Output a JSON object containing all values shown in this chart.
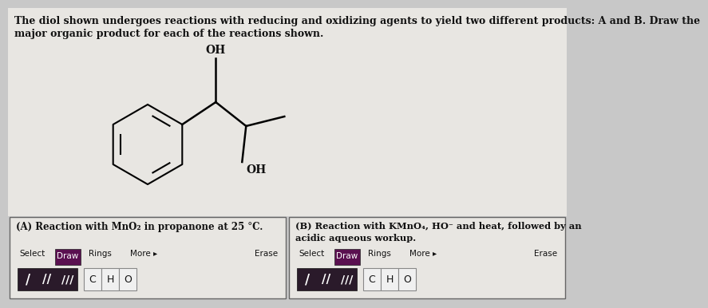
{
  "background_color": "#c8c8c8",
  "upper_bg": "#e8e6e2",
  "title_line1": "The diol shown undergoes reactions with reducing and oxidizing agents to yield two different products: A and B. Draw the",
  "title_line2": "major organic product for each of the reactions shown.",
  "title_fontsize": 9.0,
  "panel_A_label": "(A) Reaction with MnO₂ in propanone at 25 °C.",
  "panel_B_line1": "(B) Reaction with KMnO₄, HO⁻ and heat, followed by an",
  "panel_B_line2": "acidic aqueous workup.",
  "select_text": "Select",
  "draw_text": "Draw",
  "rings_text": "Rings",
  "more_text": "More ▸",
  "erase_text": "Erase",
  "c_text": "C",
  "h_text": "H",
  "o_text": "O",
  "draw_btn_color": "#5a1050",
  "bond_btn_color": "#2a1a2a",
  "cho_btn_color": "#f0f0f0",
  "panel_border_color": "#666666",
  "panel_bg": "#e8e6e2",
  "text_color": "#111111",
  "oh_label": "OH"
}
